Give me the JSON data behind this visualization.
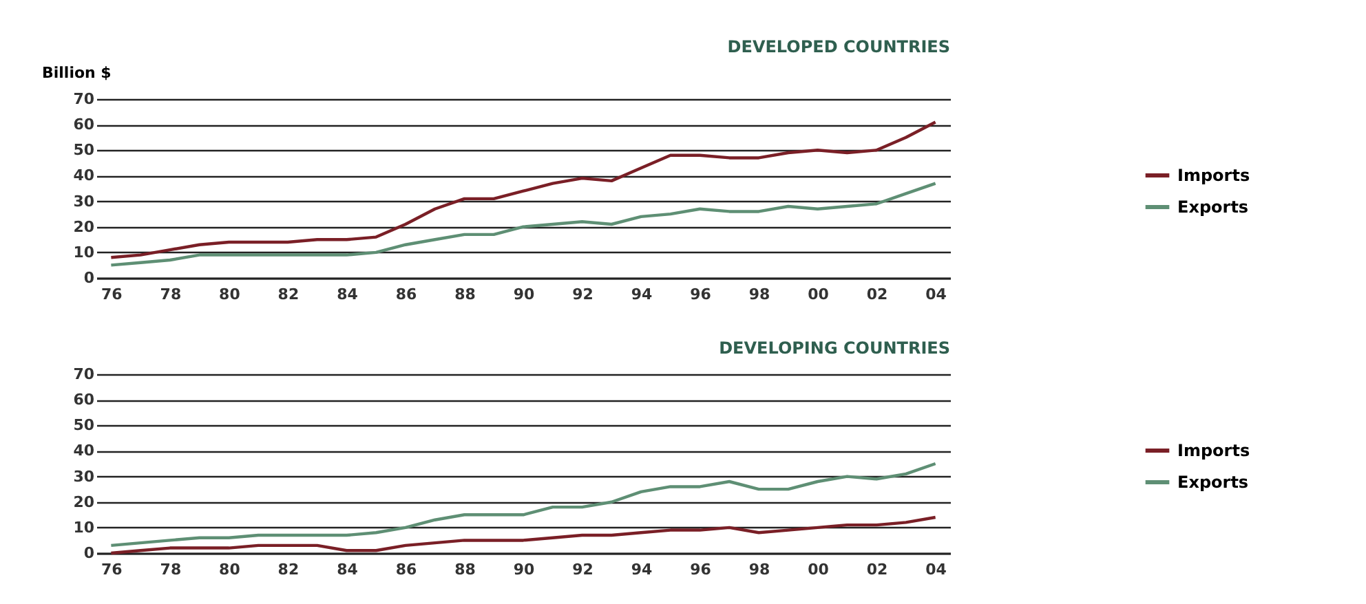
{
  "chart_data": [
    {
      "type": "line",
      "title": "DEVELOPED COUNTRIES",
      "ylabel": "Billion $",
      "grid": "y",
      "legend": "right",
      "marker": "none",
      "x": [
        1976,
        1977,
        1978,
        1979,
        1980,
        1981,
        1982,
        1983,
        1984,
        1985,
        1986,
        1987,
        1988,
        1989,
        1990,
        1991,
        1992,
        1993,
        1994,
        1995,
        1996,
        1997,
        1998,
        1999,
        2000,
        2001,
        2002,
        2003,
        2004
      ],
      "series": [
        {
          "name": "Imports",
          "color": "#7a1f26",
          "values": [
            8,
            9,
            11,
            13,
            14,
            14,
            14,
            15,
            15,
            16,
            21,
            27,
            31,
            31,
            34,
            37,
            39,
            38,
            43,
            48,
            48,
            47,
            47,
            49,
            50,
            49,
            50,
            55,
            61
          ]
        },
        {
          "name": "Exports",
          "color": "#5e8f74",
          "values": [
            5,
            6,
            7,
            9,
            9,
            9,
            9,
            9,
            9,
            10,
            13,
            15,
            17,
            17,
            20,
            21,
            22,
            21,
            24,
            25,
            27,
            26,
            26,
            28,
            27,
            28,
            29,
            33,
            37
          ]
        }
      ],
      "xlim": [
        1975.5,
        2004.5
      ],
      "ylim": [
        0,
        70
      ],
      "yticks": [
        0,
        10,
        20,
        30,
        40,
        50,
        60,
        70
      ],
      "xticks": [
        {
          "value": 1976,
          "label": "76"
        },
        {
          "value": 1978,
          "label": "78"
        },
        {
          "value": 1980,
          "label": "80"
        },
        {
          "value": 1982,
          "label": "82"
        },
        {
          "value": 1984,
          "label": "84"
        },
        {
          "value": 1986,
          "label": "86"
        },
        {
          "value": 1988,
          "label": "88"
        },
        {
          "value": 1990,
          "label": "90"
        },
        {
          "value": 1992,
          "label": "92"
        },
        {
          "value": 1994,
          "label": "94"
        },
        {
          "value": 1996,
          "label": "96"
        },
        {
          "value": 1998,
          "label": "98"
        },
        {
          "value": 2000,
          "label": "00"
        },
        {
          "value": 2002,
          "label": "02"
        },
        {
          "value": 2004,
          "label": "04"
        }
      ]
    },
    {
      "type": "line",
      "title": "DEVELOPING COUNTRIES",
      "grid": "y",
      "legend": "right",
      "marker": "none",
      "x": [
        1976,
        1977,
        1978,
        1979,
        1980,
        1981,
        1982,
        1983,
        1984,
        1985,
        1986,
        1987,
        1988,
        1989,
        1990,
        1991,
        1992,
        1993,
        1994,
        1995,
        1996,
        1997,
        1998,
        1999,
        2000,
        2001,
        2002,
        2003,
        2004
      ],
      "series": [
        {
          "name": "Imports",
          "color": "#7a1f26",
          "values": [
            0,
            1,
            2,
            2,
            2,
            3,
            3,
            3,
            1,
            1,
            3,
            4,
            5,
            5,
            5,
            6,
            7,
            7,
            8,
            9,
            9,
            10,
            8,
            9,
            10,
            11,
            11,
            12,
            14
          ]
        },
        {
          "name": "Exports",
          "color": "#5e8f74",
          "values": [
            3,
            4,
            5,
            6,
            6,
            7,
            7,
            7,
            7,
            8,
            10,
            13,
            15,
            15,
            15,
            18,
            18,
            20,
            24,
            26,
            26,
            28,
            25,
            25,
            28,
            30,
            29,
            31,
            35
          ]
        }
      ],
      "xlim": [
        1975.5,
        2004.5
      ],
      "ylim": [
        0,
        70
      ],
      "yticks": [
        0,
        10,
        20,
        30,
        40,
        50,
        60,
        70
      ],
      "xticks": [
        {
          "value": 1976,
          "label": "76"
        },
        {
          "value": 1978,
          "label": "78"
        },
        {
          "value": 1980,
          "label": "80"
        },
        {
          "value": 1982,
          "label": "82"
        },
        {
          "value": 1984,
          "label": "84"
        },
        {
          "value": 1986,
          "label": "86"
        },
        {
          "value": 1988,
          "label": "88"
        },
        {
          "value": 1990,
          "label": "90"
        },
        {
          "value": 1992,
          "label": "92"
        },
        {
          "value": 1994,
          "label": "94"
        },
        {
          "value": 1996,
          "label": "96"
        },
        {
          "value": 1998,
          "label": "98"
        },
        {
          "value": 2000,
          "label": "00"
        },
        {
          "value": 2002,
          "label": "02"
        },
        {
          "value": 2004,
          "label": "04"
        }
      ]
    }
  ]
}
